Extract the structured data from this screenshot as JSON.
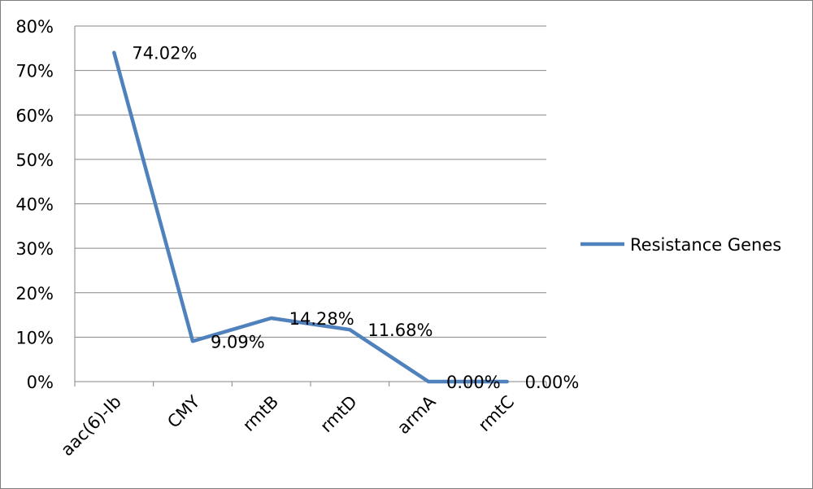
{
  "chart_data": {
    "type": "line",
    "categories": [
      "aac(6)-Ib",
      "CMY",
      "rmtB",
      "rmtD",
      "armA",
      "rmtC"
    ],
    "series": [
      {
        "name": "Resistance Genes",
        "values": [
          74.02,
          9.09,
          14.28,
          11.68,
          0.0,
          0.0
        ],
        "data_labels": [
          "74.02%",
          "9.09%",
          "14.28%",
          "11.68%",
          "0.00%",
          "0.00%"
        ]
      }
    ],
    "ylim": [
      0,
      80
    ],
    "yticks": [
      0,
      10,
      20,
      30,
      40,
      50,
      60,
      70,
      80
    ],
    "ytick_labels": [
      "0%",
      "10%",
      "20%",
      "30%",
      "40%",
      "50%",
      "60%",
      "70%",
      "80%"
    ],
    "grid": true,
    "legend_position": "right",
    "line_color": "#4F81BD",
    "grid_color": "#868686"
  }
}
